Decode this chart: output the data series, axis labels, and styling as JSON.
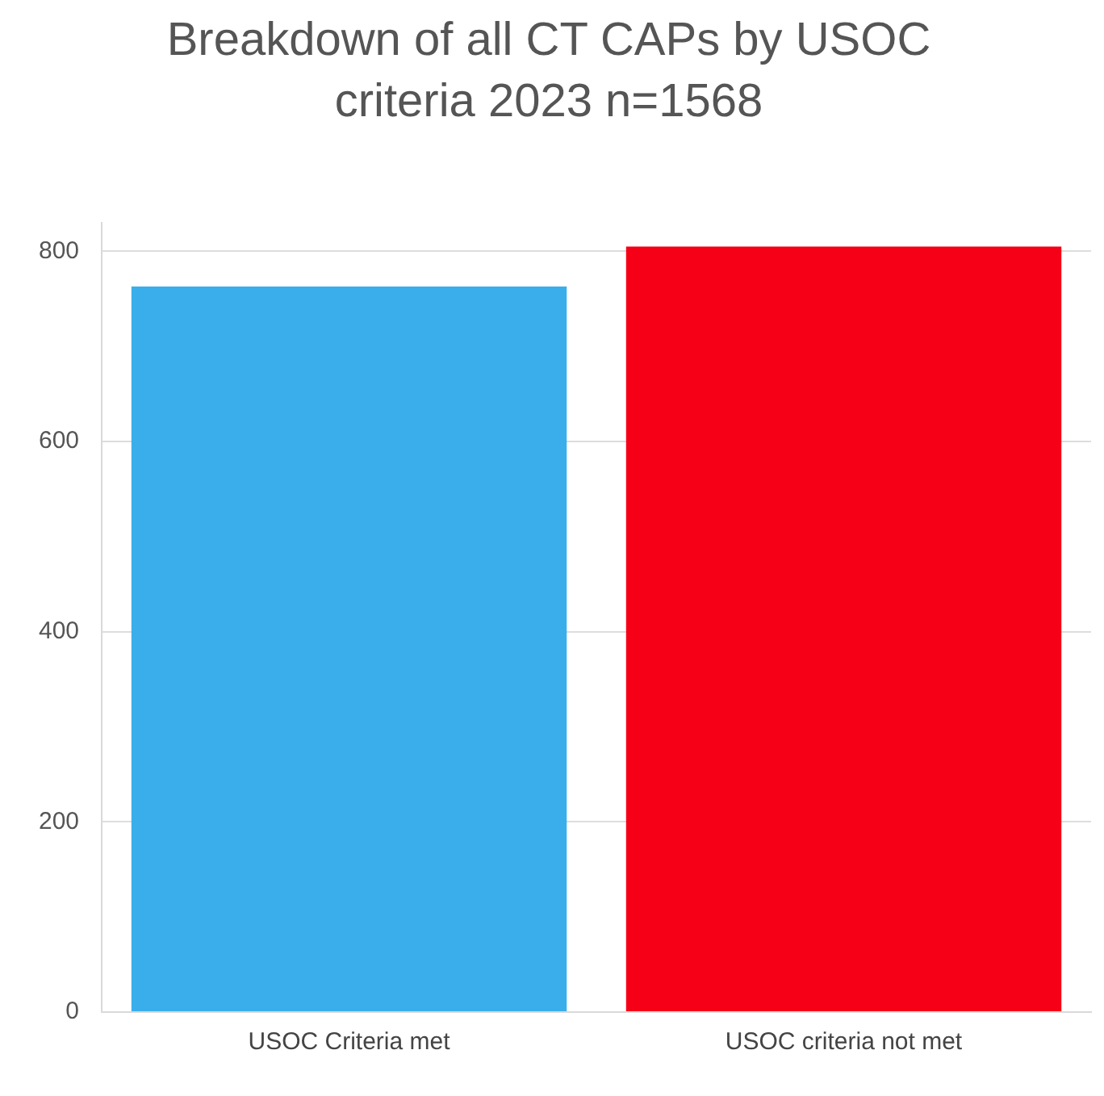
{
  "chart_data": {
    "type": "bar",
    "title": "Breakdown of all CT CAPs by USOC criteria 2023 n=1568",
    "categories": [
      "USOC Criteria met",
      "USOC criteria not met"
    ],
    "values": [
      763,
      805
    ],
    "colors": [
      "#3aaeeb",
      "#f50017"
    ],
    "ylim": [
      0,
      830
    ],
    "yticks": [
      0,
      200,
      400,
      600,
      800
    ],
    "grid": "y",
    "legend": false
  }
}
